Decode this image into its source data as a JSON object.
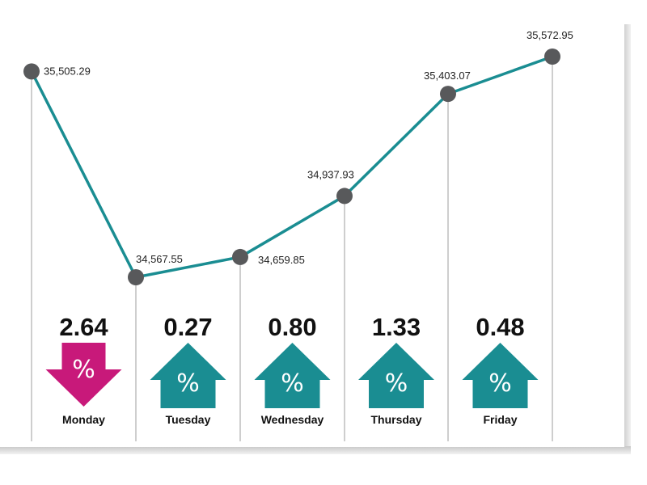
{
  "chart_data": {
    "type": "line",
    "categories": [
      "Monday",
      "Tuesday",
      "Wednesday",
      "Thursday",
      "Friday",
      ""
    ],
    "series": [
      {
        "values": [
          35505.29,
          34567.55,
          34659.85,
          34937.93,
          35403.07,
          35572.95
        ],
        "labels": [
          "35,505.29",
          "34,567.55",
          "34,659.85",
          "34,937.93",
          "35,403.07",
          "35,572.95"
        ]
      }
    ],
    "daily_change": [
      {
        "day": "Monday",
        "value": "2.64",
        "direction": "down"
      },
      {
        "day": "Tuesday",
        "value": "0.27",
        "direction": "up"
      },
      {
        "day": "Wednesday",
        "value": "0.80",
        "direction": "up"
      },
      {
        "day": "Thursday",
        "value": "1.33",
        "direction": "up"
      },
      {
        "day": "Friday",
        "value": "0.48",
        "direction": "up"
      }
    ],
    "percent_symbol": "%",
    "ylim": [
      34000,
      35700
    ],
    "grid": false,
    "legend": "none"
  },
  "colors": {
    "line": "#1a8d92",
    "marker": "#58595b",
    "up": "#1a8d92",
    "down": "#c8197a",
    "divider": "#9e9e9e"
  }
}
